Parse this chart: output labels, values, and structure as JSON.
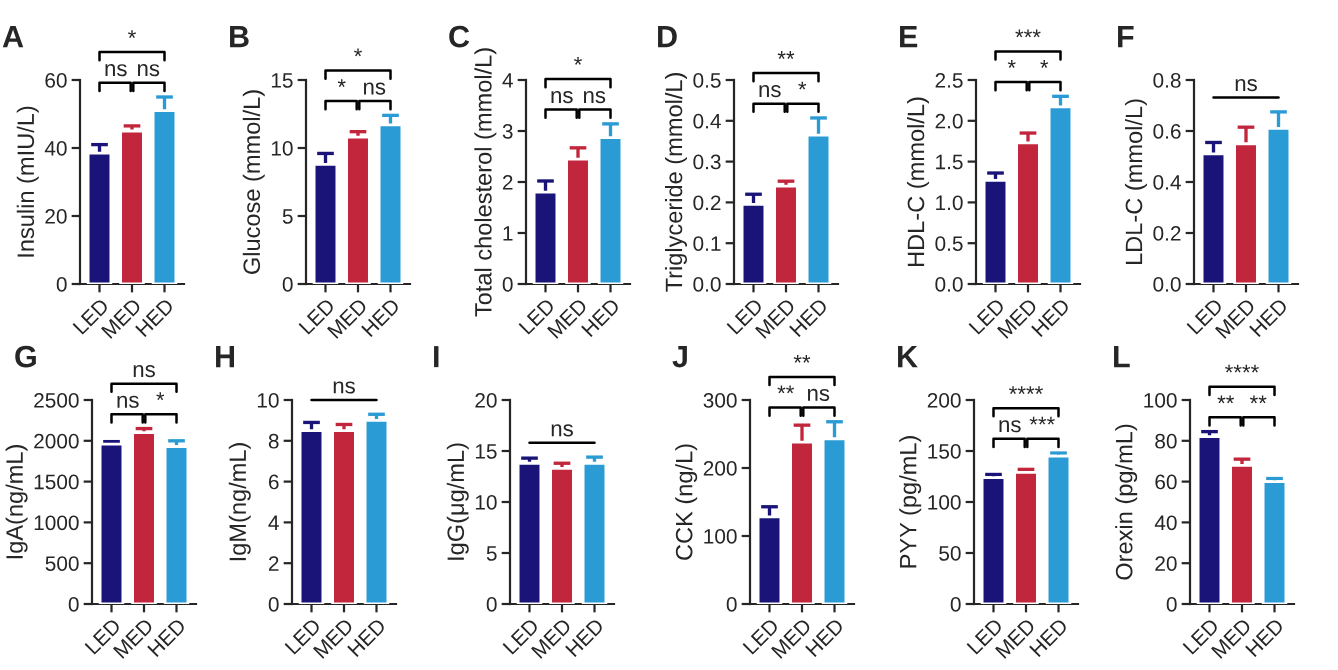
{
  "chart_data": [
    {
      "type": "bar",
      "title": "A",
      "ylabel": "Insulin (mIU/L)",
      "categories": [
        "LED",
        "MED",
        "HED"
      ],
      "values": [
        38.5,
        45,
        51
      ],
      "errors": [
        2.5,
        1.5,
        4
      ],
      "colors": [
        "#1a1478",
        "#c1263d",
        "#2a9bd4"
      ],
      "ylim": [
        0,
        60
      ],
      "yticks": [
        0,
        20,
        40,
        60
      ],
      "annotations": [
        "ns",
        "ns",
        "*"
      ]
    },
    {
      "type": "bar",
      "title": "B",
      "ylabel": "Glucose (mmol/L)",
      "categories": [
        "LED",
        "MED",
        "HED"
      ],
      "values": [
        8.8,
        10.8,
        11.7
      ],
      "errors": [
        0.8,
        0.4,
        0.7
      ],
      "colors": [
        "#1a1478",
        "#c1263d",
        "#2a9bd4"
      ],
      "ylim": [
        0,
        15
      ],
      "yticks": [
        0,
        5,
        10,
        15
      ],
      "annotations": [
        "*",
        "ns",
        "*"
      ]
    },
    {
      "type": "bar",
      "title": "C",
      "ylabel": "Total cholesterol (mmol/L)",
      "categories": [
        "LED",
        "MED",
        "HED"
      ],
      "values": [
        1.8,
        2.45,
        2.87
      ],
      "errors": [
        0.22,
        0.22,
        0.27
      ],
      "colors": [
        "#1a1478",
        "#c1263d",
        "#2a9bd4"
      ],
      "ylim": [
        0,
        4
      ],
      "yticks": [
        0,
        1,
        2,
        3,
        4
      ],
      "annotations": [
        "ns",
        "ns",
        "*"
      ]
    },
    {
      "type": "bar",
      "title": "D",
      "ylabel": "Triglyceride (mmol/L)",
      "categories": [
        "LED",
        "MED",
        "HED"
      ],
      "values": [
        0.195,
        0.24,
        0.365
      ],
      "errors": [
        0.025,
        0.012,
        0.042
      ],
      "colors": [
        "#1a1478",
        "#c1263d",
        "#2a9bd4"
      ],
      "ylim": [
        0,
        0.5
      ],
      "yticks": [
        {
          "value": 0,
          "label": "0.0"
        },
        0.1,
        0.2,
        0.3,
        0.4,
        0.5
      ],
      "annotations": [
        "ns",
        "*",
        "**"
      ]
    },
    {
      "type": "bar",
      "title": "E",
      "ylabel": "HDL-C (mmol/L)",
      "categories": [
        "LED",
        "MED",
        "HED"
      ],
      "values": [
        1.27,
        1.73,
        2.17
      ],
      "errors": [
        0.09,
        0.12,
        0.13
      ],
      "colors": [
        "#1a1478",
        "#c1263d",
        "#2a9bd4"
      ],
      "ylim": [
        0,
        2.5
      ],
      "yticks": [
        {
          "value": 0,
          "label": "0.0"
        },
        0.5,
        {
          "value": 1,
          "label": "1.0"
        },
        1.5,
        {
          "value": 2,
          "label": "2.0"
        },
        2.5
      ],
      "annotations": [
        "*",
        "*",
        "***"
      ]
    },
    {
      "type": "bar",
      "title": "F",
      "ylabel": "LDL-C (mmol/L)",
      "categories": [
        "LED",
        "MED",
        "HED"
      ],
      "values": [
        0.51,
        0.55,
        0.61
      ],
      "errors": [
        0.045,
        0.065,
        0.065
      ],
      "colors": [
        "#1a1478",
        "#c1263d",
        "#2a9bd4"
      ],
      "ylim": [
        0,
        0.8
      ],
      "yticks": [
        {
          "value": 0,
          "label": "0.0"
        },
        0.2,
        0.4,
        0.6,
        0.8
      ],
      "annotations": [
        "ns"
      ]
    },
    {
      "type": "bar",
      "title": "G",
      "ylabel": "IgA(ng/mL)",
      "categories": [
        "LED",
        "MED",
        "HED"
      ],
      "values": [
        1960,
        2100,
        1930
      ],
      "errors": [
        30,
        50,
        70
      ],
      "colors": [
        "#1a1478",
        "#c1263d",
        "#2a9bd4"
      ],
      "ylim": [
        0,
        2500
      ],
      "yticks": [
        0,
        500,
        1000,
        1500,
        2000,
        2500
      ],
      "annotations": [
        "ns",
        "*",
        "ns"
      ]
    },
    {
      "type": "bar",
      "title": "H",
      "ylabel": "IgM(ng/mL)",
      "categories": [
        "LED",
        "MED",
        "HED"
      ],
      "values": [
        8.5,
        8.5,
        9.0
      ],
      "errors": [
        0.4,
        0.3,
        0.3
      ],
      "colors": [
        "#1a1478",
        "#c1263d",
        "#2a9bd4"
      ],
      "ylim": [
        0,
        10
      ],
      "yticks": [
        0,
        2,
        4,
        6,
        8,
        10
      ],
      "annotations": [
        "ns"
      ]
    },
    {
      "type": "bar",
      "title": "I",
      "ylabel": "IgG(μg/mL)",
      "categories": [
        "LED",
        "MED",
        "HED"
      ],
      "values": [
        13.8,
        13.3,
        13.8
      ],
      "errors": [
        0.5,
        0.5,
        0.6
      ],
      "colors": [
        "#1a1478",
        "#c1263d",
        "#2a9bd4"
      ],
      "ylim": [
        0,
        20
      ],
      "yticks": [
        0,
        5,
        10,
        15,
        20
      ],
      "annotations": [
        "ns"
      ]
    },
    {
      "type": "bar",
      "title": "J",
      "ylabel": "CCK (ng/L)",
      "categories": [
        "LED",
        "MED",
        "HED"
      ],
      "values": [
        128,
        238,
        243
      ],
      "errors": [
        15,
        25,
        25
      ],
      "colors": [
        "#1a1478",
        "#c1263d",
        "#2a9bd4"
      ],
      "ylim": [
        0,
        300
      ],
      "yticks": [
        0,
        100,
        200,
        300
      ],
      "annotations": [
        "**",
        "ns",
        "**"
      ]
    },
    {
      "type": "bar",
      "title": "K",
      "ylabel": "PYY (pg/mL)",
      "categories": [
        "LED",
        "MED",
        "HED"
      ],
      "values": [
        124,
        129,
        145
      ],
      "errors": [
        3,
        3,
        3
      ],
      "colors": [
        "#1a1478",
        "#c1263d",
        "#2a9bd4"
      ],
      "ylim": [
        0,
        200
      ],
      "yticks": [
        0,
        50,
        100,
        150,
        200
      ],
      "annotations": [
        "ns",
        "***",
        "****"
      ]
    },
    {
      "type": "bar",
      "title": "L",
      "ylabel": "Orexin (pg/mL)",
      "categories": [
        "LED",
        "MED",
        "HED"
      ],
      "values": [
        82,
        68,
        60
      ],
      "errors": [
        2.5,
        3,
        1.5
      ],
      "colors": [
        "#1a1478",
        "#c1263d",
        "#2a9bd4"
      ],
      "ylim": [
        0,
        100
      ],
      "yticks": [
        0,
        20,
        40,
        60,
        80,
        100
      ],
      "annotations": [
        "**",
        "**",
        "****"
      ]
    }
  ]
}
